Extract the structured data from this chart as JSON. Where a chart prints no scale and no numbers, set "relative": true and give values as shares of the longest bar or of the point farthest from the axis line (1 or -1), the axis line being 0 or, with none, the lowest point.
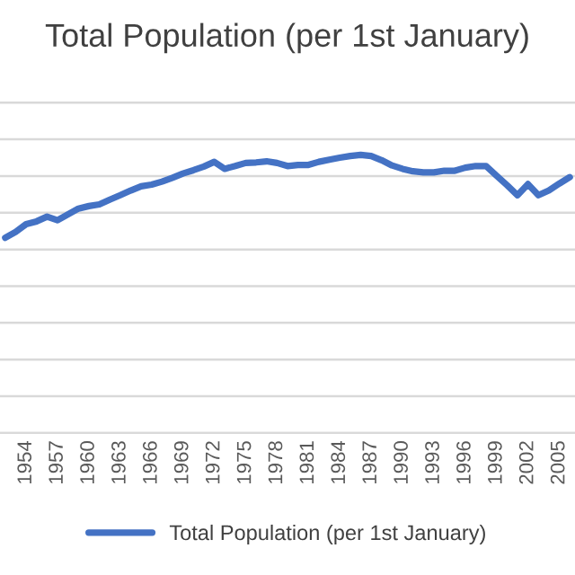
{
  "chart_data": {
    "type": "line",
    "title": "Total Population (per 1st January)",
    "relative": true,
    "grid": "y",
    "legend": "bottom",
    "categories": [
      null,
      null,
      "1954",
      null,
      null,
      "1957",
      null,
      null,
      "1960",
      null,
      null,
      "1963",
      null,
      null,
      "1966",
      null,
      null,
      "1969",
      null,
      null,
      "1972",
      null,
      null,
      "1975",
      null,
      null,
      "1978",
      null,
      null,
      "1981",
      null,
      null,
      "1984",
      null,
      null,
      "1987",
      null,
      null,
      "1990",
      null,
      null,
      "1993",
      null,
      null,
      "1996",
      null,
      null,
      "1999",
      null,
      null,
      "2002",
      null,
      null,
      "2005",
      null
    ],
    "series": [
      {
        "name": "Total Population (per 1st January)",
        "color": "#4472c4",
        "values": [
          0.702,
          0.723,
          0.751,
          0.761,
          0.778,
          0.765,
          0.786,
          0.807,
          0.816,
          0.822,
          0.839,
          0.855,
          0.872,
          0.887,
          0.893,
          0.904,
          0.918,
          0.933,
          0.945,
          0.958,
          0.975,
          0.95,
          0.96,
          0.971,
          0.973,
          0.977,
          0.971,
          0.96,
          0.964,
          0.964,
          0.975,
          0.983,
          0.99,
          0.996,
          1,
          0.996,
          0.981,
          0.962,
          0.95,
          0.941,
          0.937,
          0.937,
          0.943,
          0.943,
          0.954,
          0.96,
          0.96,
          0.925,
          0.891,
          0.855,
          0.895,
          0.855,
          0.872,
          0.897,
          0.92
        ]
      }
    ]
  }
}
